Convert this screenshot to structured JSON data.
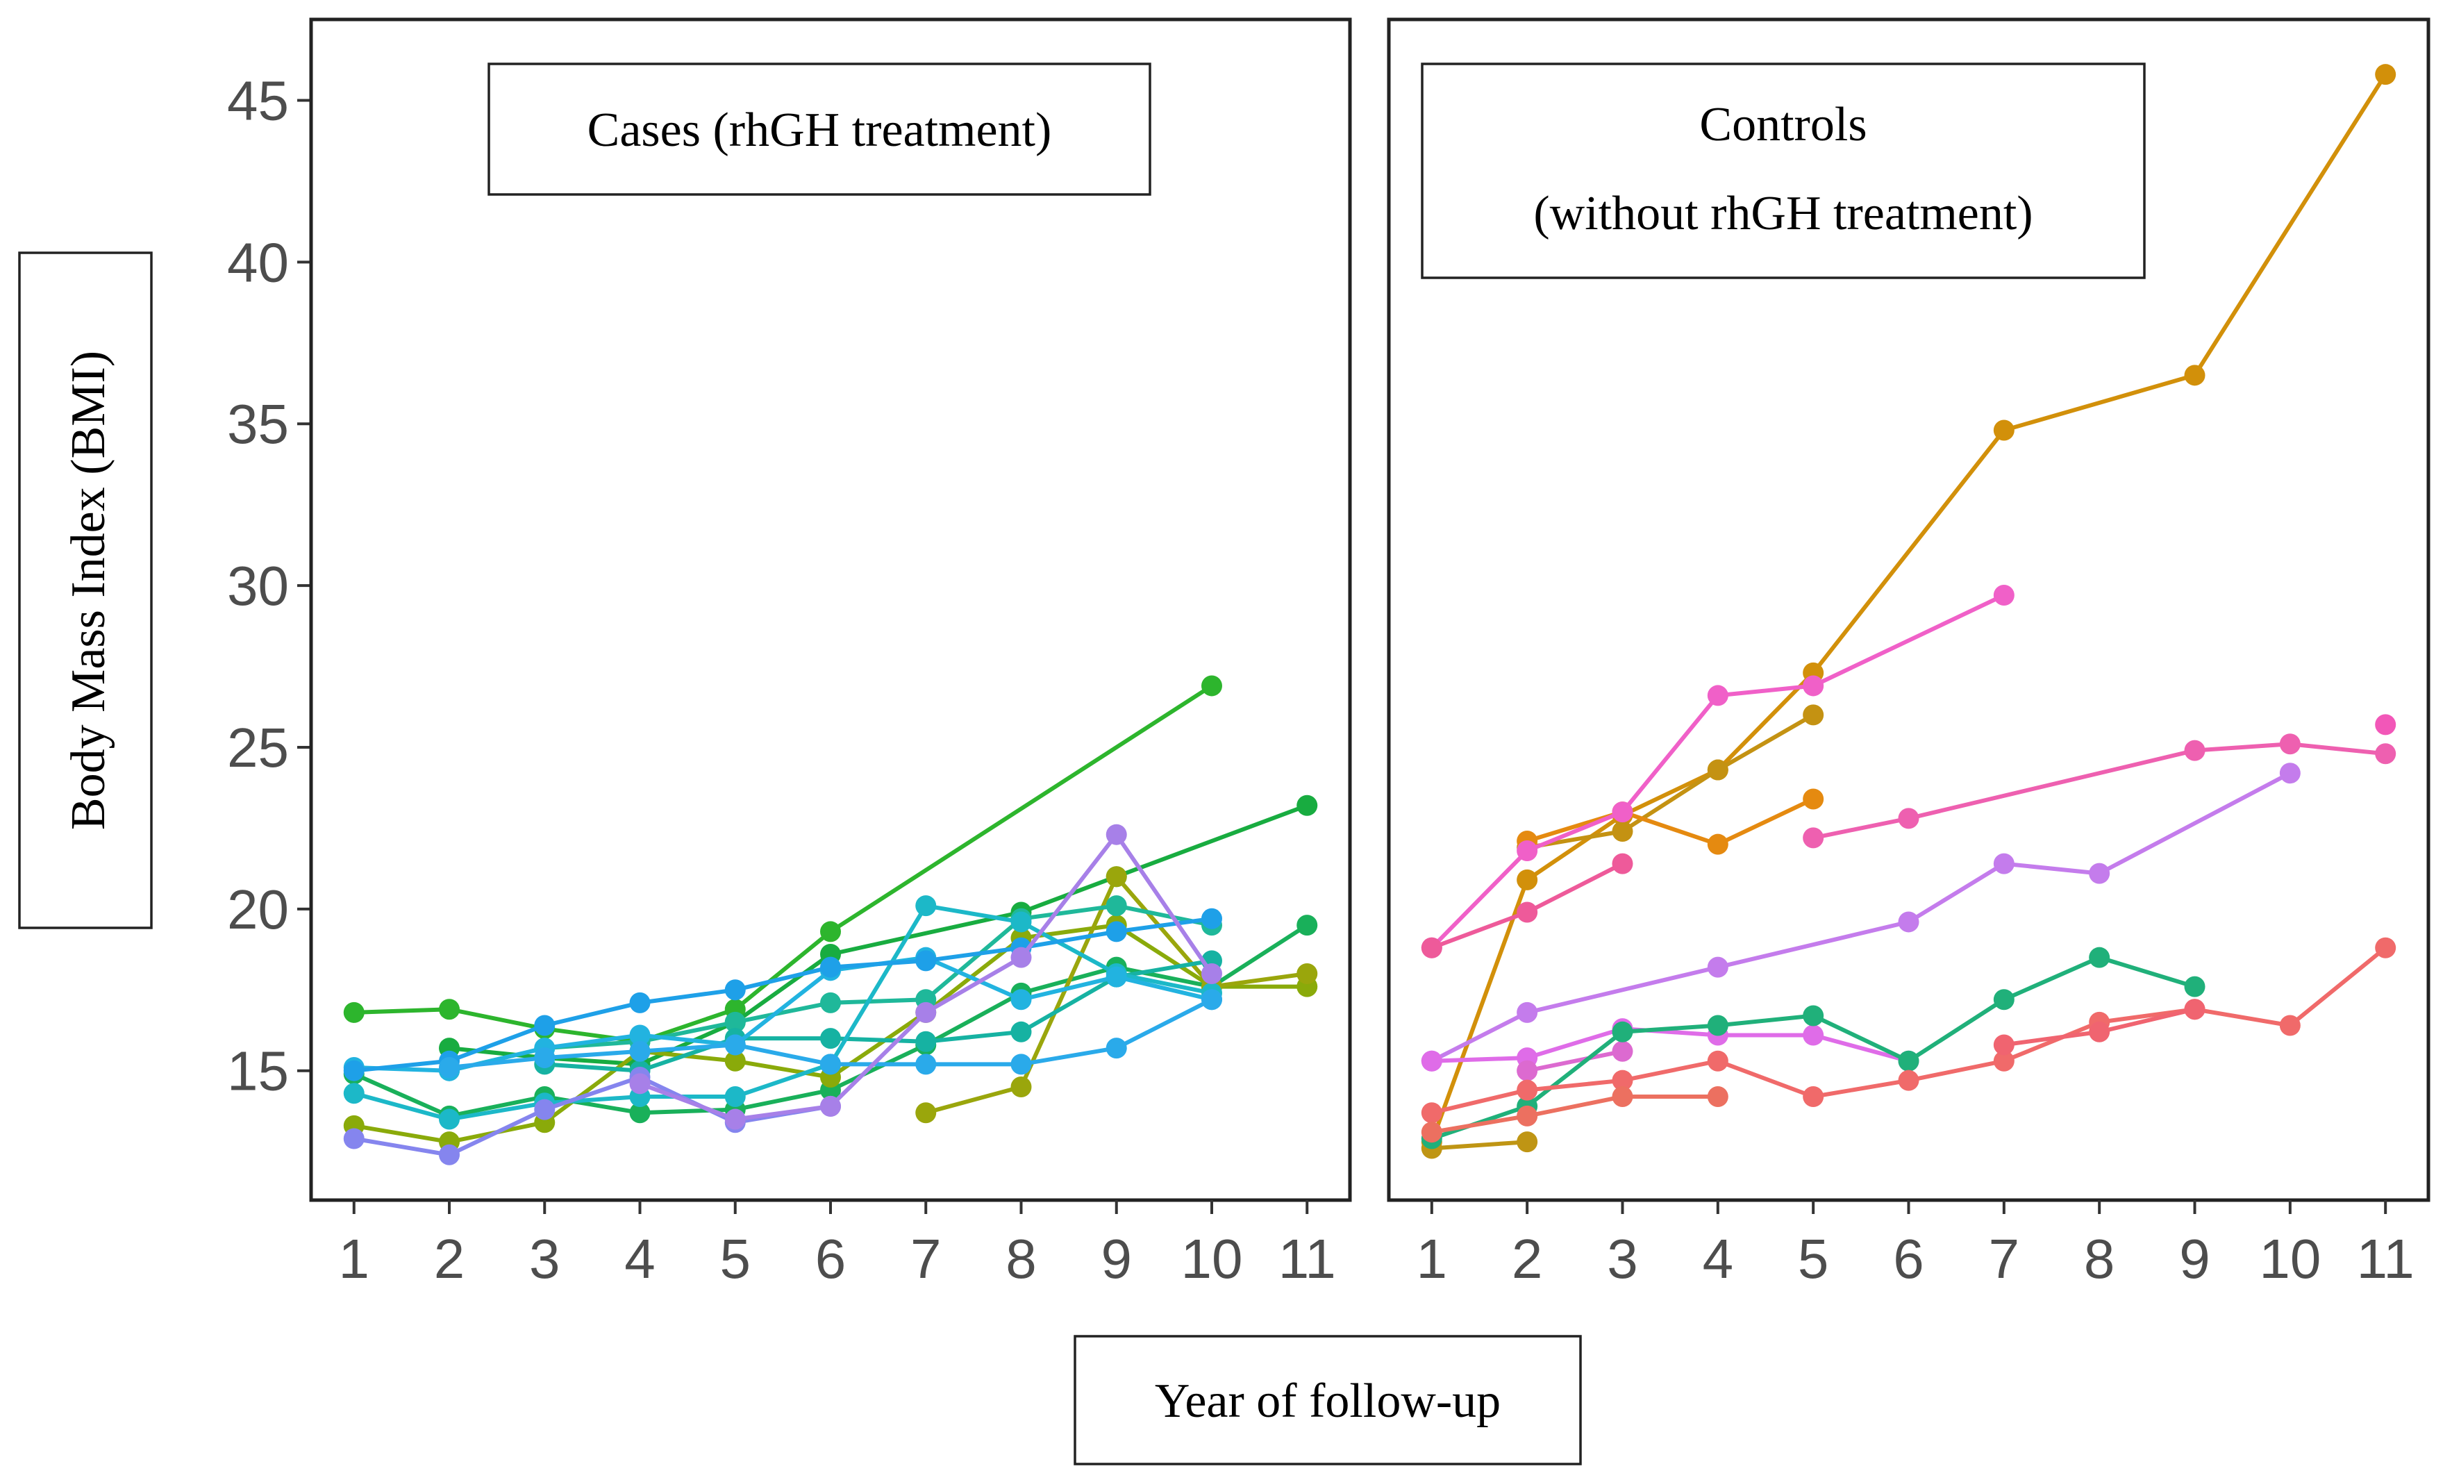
{
  "chart_data": {
    "type": "line",
    "ylabel": "Body Mass Index (BMI)",
    "xlabel": "Year of follow-up",
    "x_ticks": [
      "1",
      "2",
      "3",
      "4",
      "5",
      "6",
      "7",
      "8",
      "9",
      "10",
      "11"
    ],
    "y_ticks": [
      "15",
      "20",
      "25",
      "30",
      "35",
      "40",
      "45"
    ],
    "xlim": [
      0.55,
      11.45
    ],
    "ylim": [
      11.0,
      47.5
    ],
    "panels": [
      {
        "title_lines": [
          "Cases (rhGH treatment)"
        ],
        "series": [
          {
            "color": "#2db52d",
            "points": [
              [
                1,
                16.8
              ],
              [
                2,
                16.9
              ],
              [
                3,
                16.3
              ],
              [
                4,
                15.9
              ],
              [
                5,
                16.9
              ],
              [
                6,
                19.3
              ],
              [
                10,
                26.9
              ]
            ]
          },
          {
            "color": "#18ac40",
            "points": [
              [
                2,
                15.7
              ],
              [
                3,
                15.4
              ],
              [
                4,
                15.2
              ],
              [
                5,
                16.5
              ],
              [
                6,
                18.6
              ],
              [
                8,
                19.9
              ],
              [
                9,
                21.0
              ],
              [
                11,
                23.2
              ]
            ]
          },
          {
            "color": "#19b05a",
            "points": [
              [
                1,
                14.9
              ],
              [
                2,
                13.6
              ],
              [
                3,
                14.2
              ],
              [
                4,
                13.7
              ],
              [
                5,
                13.8
              ],
              [
                6,
                14.4
              ],
              [
                7,
                15.8
              ],
              [
                8,
                17.4
              ],
              [
                9,
                18.2
              ],
              [
                10,
                17.6
              ],
              [
                11,
                19.5
              ]
            ]
          },
          {
            "color": "#8aaa0a",
            "points": [
              [
                1,
                13.3
              ],
              [
                2,
                12.8
              ],
              [
                3,
                13.4
              ],
              [
                4,
                15.6
              ],
              [
                5,
                15.3
              ],
              [
                6,
                14.8
              ],
              [
                7,
                16.8
              ],
              [
                8,
                19.1
              ],
              [
                9,
                19.5
              ],
              [
                10,
                17.6
              ],
              [
                11,
                17.6
              ]
            ]
          },
          {
            "color": "#9aa60c",
            "points": [
              [
                7,
                13.7
              ],
              [
                8,
                14.5
              ],
              [
                9,
                21.0
              ],
              [
                10,
                17.6
              ],
              [
                11,
                18.0
              ]
            ]
          },
          {
            "color": "#1fb89a",
            "points": [
              [
                2,
                15.0
              ],
              [
                3,
                15.7
              ],
              [
                4,
                15.9
              ],
              [
                5,
                16.5
              ],
              [
                6,
                17.1
              ],
              [
                7,
                17.2
              ],
              [
                8,
                19.7
              ],
              [
                9,
                20.1
              ],
              [
                10,
                19.5
              ]
            ]
          },
          {
            "color": "#16b2a2",
            "points": [
              [
                3,
                15.2
              ],
              [
                4,
                15.0
              ],
              [
                5,
                16.0
              ],
              [
                6,
                16.0
              ],
              [
                7,
                15.9
              ],
              [
                8,
                16.2
              ],
              [
                9,
                17.9
              ],
              [
                10,
                18.4
              ]
            ]
          },
          {
            "color": "#1cb8c8",
            "points": [
              [
                1,
                14.3
              ],
              [
                2,
                13.5
              ],
              [
                3,
                14.0
              ],
              [
                4,
                14.2
              ],
              [
                5,
                14.2
              ],
              [
                6,
                15.2
              ],
              [
                7,
                20.1
              ],
              [
                8,
                19.6
              ],
              [
                9,
                18.0
              ],
              [
                10,
                17.4
              ]
            ]
          },
          {
            "color": "#22b3e0",
            "points": [
              [
                1,
                15.1
              ],
              [
                2,
                15.0
              ],
              [
                3,
                15.7
              ],
              [
                4,
                16.1
              ],
              [
                5,
                15.8
              ],
              [
                6,
                18.1
              ],
              [
                7,
                18.5
              ],
              [
                8,
                17.2
              ],
              [
                9,
                17.9
              ],
              [
                10,
                17.2
              ]
            ]
          },
          {
            "color": "#1ea0e8",
            "points": [
              [
                1,
                15.0
              ],
              [
                2,
                15.3
              ],
              [
                3,
                16.4
              ],
              [
                4,
                17.1
              ],
              [
                5,
                17.5
              ],
              [
                6,
                18.2
              ],
              [
                7,
                18.4
              ],
              [
                8,
                18.8
              ],
              [
                9,
                19.3
              ],
              [
                10,
                19.7
              ]
            ]
          },
          {
            "color": "#2aaaea",
            "points": [
              [
                2,
                15.1
              ],
              [
                3,
                15.4
              ],
              [
                4,
                15.6
              ],
              [
                5,
                15.8
              ],
              [
                6,
                15.2
              ],
              [
                7,
                15.2
              ],
              [
                8,
                15.2
              ],
              [
                9,
                15.7
              ],
              [
                10,
                17.2
              ]
            ]
          },
          {
            "color": "#8585ee",
            "points": [
              [
                1,
                12.9
              ],
              [
                2,
                12.4
              ],
              [
                3,
                13.8
              ],
              [
                4,
                14.8
              ],
              [
                5,
                13.4
              ],
              [
                6,
                13.9
              ]
            ]
          },
          {
            "color": "#a780e8",
            "points": [
              [
                4,
                14.6
              ],
              [
                5,
                13.5
              ],
              [
                6,
                13.9
              ],
              [
                7,
                16.8
              ],
              [
                8,
                18.5
              ],
              [
                9,
                22.3
              ],
              [
                10,
                18.0
              ]
            ]
          }
        ]
      },
      {
        "title_lines": [
          "Controls",
          "(without rhGH treatment)"
        ],
        "series": [
          {
            "color": "#d2900a",
            "points": [
              [
                1,
                12.8
              ],
              [
                2,
                20.9
              ],
              [
                3,
                22.9
              ],
              [
                4,
                24.3
              ],
              [
                5,
                27.3
              ],
              [
                7,
                34.8
              ],
              [
                9,
                36.5
              ],
              [
                11,
                45.8
              ]
            ]
          },
          {
            "color": "#bf9514",
            "points": [
              [
                1,
                12.6
              ],
              [
                2,
                12.8
              ]
            ]
          },
          {
            "color": "#c49212",
            "points": [
              [
                2,
                21.9
              ],
              [
                3,
                22.4
              ],
              [
                4,
                24.3
              ],
              [
                5,
                26.0
              ]
            ]
          },
          {
            "color": "#e58a10",
            "points": [
              [
                2,
                22.1
              ],
              [
                3,
                23.0
              ],
              [
                4,
                22.0
              ],
              [
                5,
                23.4
              ]
            ]
          },
          {
            "color": "#f060c8",
            "points": [
              [
                1,
                18.8
              ],
              [
                2,
                21.8
              ],
              [
                3,
                23.0
              ],
              [
                4,
                26.6
              ],
              [
                5,
                26.9
              ],
              [
                7,
                29.7
              ]
            ]
          },
          {
            "color": "#ee5a9a",
            "points": [
              [
                1,
                18.8
              ],
              [
                2,
                19.9
              ],
              [
                3,
                21.4
              ]
            ]
          },
          {
            "color": "#ee60b0",
            "points": [
              [
                5,
                22.2
              ],
              [
                6,
                22.8
              ],
              [
                9,
                24.9
              ],
              [
                10,
                25.1
              ],
              [
                11,
                24.8
              ]
            ]
          },
          {
            "color": "#f257b8",
            "points": [
              [
                11,
                25.7
              ]
            ]
          },
          {
            "color": "#c47cec",
            "points": [
              [
                1,
                15.3
              ],
              [
                2,
                16.8
              ],
              [
                4,
                18.2
              ],
              [
                6,
                19.6
              ],
              [
                7,
                21.4
              ],
              [
                8,
                21.1
              ],
              [
                10,
                24.2
              ]
            ]
          },
          {
            "color": "#df6ce8",
            "points": [
              [
                1,
                15.3
              ],
              [
                2,
                15.4
              ],
              [
                3,
                16.3
              ],
              [
                4,
                16.1
              ],
              [
                5,
                16.1
              ],
              [
                6,
                15.3
              ]
            ]
          },
          {
            "color": "#dc6ad0",
            "points": [
              [
                2,
                15.0
              ],
              [
                3,
                15.6
              ]
            ]
          },
          {
            "color": "#20b07a",
            "points": [
              [
                1,
                12.9
              ],
              [
                2,
                13.9
              ],
              [
                3,
                16.2
              ],
              [
                4,
                16.4
              ],
              [
                5,
                16.7
              ],
              [
                6,
                15.3
              ],
              [
                7,
                17.2
              ],
              [
                8,
                18.5
              ],
              [
                9,
                17.6
              ]
            ]
          },
          {
            "color": "#f06a6a",
            "points": [
              [
                1,
                13.7
              ],
              [
                2,
                14.4
              ],
              [
                3,
                14.7
              ],
              [
                4,
                15.3
              ],
              [
                5,
                14.2
              ],
              [
                6,
                14.7
              ],
              [
                7,
                15.3
              ],
              [
                8,
                16.5
              ],
              [
                9,
                16.9
              ],
              [
                10,
                16.4
              ],
              [
                11,
                18.8
              ]
            ]
          },
          {
            "color": "#ec7060",
            "points": [
              [
                1,
                13.1
              ],
              [
                2,
                13.6
              ],
              [
                3,
                14.2
              ],
              [
                4,
                14.2
              ]
            ]
          },
          {
            "color": "#f06470",
            "points": [
              [
                7,
                15.8
              ],
              [
                8,
                16.2
              ],
              [
                9,
                16.9
              ]
            ]
          }
        ]
      }
    ]
  }
}
